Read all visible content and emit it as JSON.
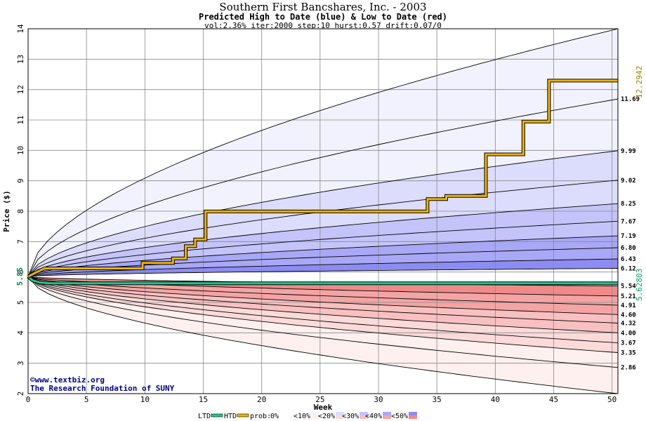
{
  "header": {
    "title": "Southern First Bancshares, Inc. - 2003",
    "subtitle": "Predicted High to Date (blue) &  Low to Date (red)",
    "params": "vol:2.36% iter:2000 step:10 hurst:0.57 drift:0.07/0"
  },
  "watermark": {
    "line1": "©www.textbiz.org",
    "line2": "The Research Foundation of SUNY"
  },
  "legend": {
    "ltd": "LTD",
    "htd": "HTD",
    "prob": "prob:",
    "items": [
      "0%",
      "<10%",
      "<20%",
      "<30%",
      "<40%",
      "<50%"
    ]
  },
  "colors": {
    "htd_line": "#f0b400",
    "ltd_line": "#20c890",
    "hi_bands": [
      "#f2f2fe",
      "#dcdcfc",
      "#c4c4fa",
      "#a8a8f6",
      "#8c8cf2"
    ],
    "lo_bands": [
      "#fef0ee",
      "#fcdada",
      "#f8c0c0",
      "#f4a4a4",
      "#f08a8a"
    ]
  },
  "chart_data": {
    "type": "area",
    "xlabel": "Week",
    "ylabel": "Price ($)",
    "xlim": [
      0,
      50.5
    ],
    "ylim": [
      2,
      14
    ],
    "x_ticks": [
      0,
      5,
      10,
      15,
      20,
      25,
      30,
      35,
      40,
      45,
      50
    ],
    "y_ticks": [
      2,
      3,
      4,
      5,
      6,
      7,
      8,
      9,
      10,
      11,
      12,
      13,
      14
    ],
    "grid": true,
    "start_price": 5.85,
    "start_label": "5.85",
    "high_to_date_final": 12.2942,
    "high_to_date_label": "12.2942",
    "low_to_date_final": 5.62803,
    "low_to_date_label": "5.62803",
    "upper_quantiles": [
      {
        "end": 14.0,
        "label": ""
      },
      {
        "end": 11.69,
        "label": "11.69"
      },
      {
        "end": 9.99,
        "label": "9.99"
      },
      {
        "end": 9.02,
        "label": "9.02"
      },
      {
        "end": 8.25,
        "label": "8.25"
      },
      {
        "end": 7.67,
        "label": "7.67"
      },
      {
        "end": 7.19,
        "label": "7.19"
      },
      {
        "end": 6.8,
        "label": "6.80"
      },
      {
        "end": 6.43,
        "label": "6.43"
      },
      {
        "end": 6.12,
        "label": "6.12"
      }
    ],
    "lower_quantiles": [
      {
        "end": 5.54,
        "label": "5.54"
      },
      {
        "end": 5.21,
        "label": "5.21"
      },
      {
        "end": 4.91,
        "label": "4.91"
      },
      {
        "end": 4.6,
        "label": "4.60"
      },
      {
        "end": 4.32,
        "label": "4.32"
      },
      {
        "end": 4.0,
        "label": "4.00"
      },
      {
        "end": 3.67,
        "label": "3.67"
      },
      {
        "end": 3.35,
        "label": "3.35"
      },
      {
        "end": 2.86,
        "label": "2.86"
      },
      {
        "end": 2.0,
        "label": ""
      }
    ],
    "htd_path": [
      [
        0,
        5.85
      ],
      [
        0.5,
        5.95
      ],
      [
        1.4,
        6.12
      ],
      [
        9.8,
        6.12
      ],
      [
        9.8,
        6.3
      ],
      [
        12.4,
        6.3
      ],
      [
        12.4,
        6.45
      ],
      [
        13.5,
        6.45
      ],
      [
        13.5,
        6.85
      ],
      [
        14.3,
        6.85
      ],
      [
        14.3,
        7.07
      ],
      [
        15.2,
        7.07
      ],
      [
        15.2,
        7.99
      ],
      [
        34.2,
        7.99
      ],
      [
        34.2,
        8.4
      ],
      [
        35.8,
        8.4
      ],
      [
        35.8,
        8.5
      ],
      [
        39.2,
        8.5
      ],
      [
        39.2,
        9.87
      ],
      [
        42.4,
        9.87
      ],
      [
        42.4,
        10.95
      ],
      [
        44.6,
        10.95
      ],
      [
        44.6,
        12.2942
      ],
      [
        50.5,
        12.2942
      ]
    ],
    "ltd_path": [
      [
        0,
        5.85
      ],
      [
        0.4,
        5.72
      ],
      [
        1.0,
        5.66
      ],
      [
        1.8,
        5.63
      ],
      [
        50.5,
        5.62803
      ]
    ]
  }
}
